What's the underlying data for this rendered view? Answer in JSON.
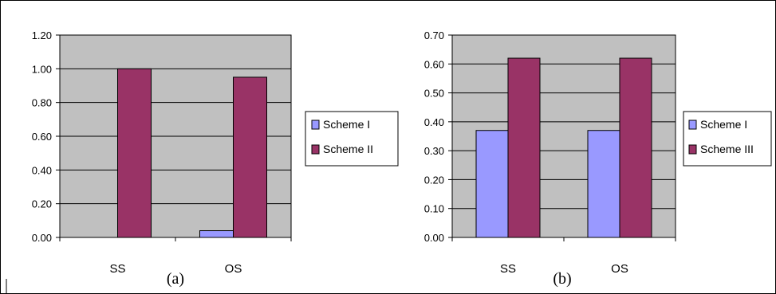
{
  "chart_data": [
    {
      "type": "bar",
      "caption": "(a)",
      "categories": [
        "SS",
        "OS"
      ],
      "series": [
        {
          "name": "Scheme I",
          "values": [
            0.0,
            0.04
          ]
        },
        {
          "name": "Scheme II",
          "values": [
            1.0,
            0.95
          ]
        }
      ],
      "ylim": [
        0,
        1.2
      ],
      "yticks": [
        "0.00",
        "0.20",
        "0.40",
        "0.60",
        "0.80",
        "1.00",
        "1.20"
      ],
      "grid": true,
      "legend": "right"
    },
    {
      "type": "bar",
      "caption": "(b)",
      "categories": [
        "SS",
        "OS"
      ],
      "series": [
        {
          "name": "Scheme I",
          "values": [
            0.37,
            0.37
          ]
        },
        {
          "name": "Scheme III",
          "values": [
            0.62,
            0.62
          ]
        }
      ],
      "ylim": [
        0,
        0.7
      ],
      "yticks": [
        "0.00",
        "0.10",
        "0.20",
        "0.30",
        "0.40",
        "0.50",
        "0.60",
        "0.70"
      ],
      "grid": true,
      "legend": "right"
    }
  ],
  "colors": {
    "plot_bg": "#c0c0c0",
    "series1": "#9999ff",
    "series2": "#993366",
    "border": "#000000"
  }
}
